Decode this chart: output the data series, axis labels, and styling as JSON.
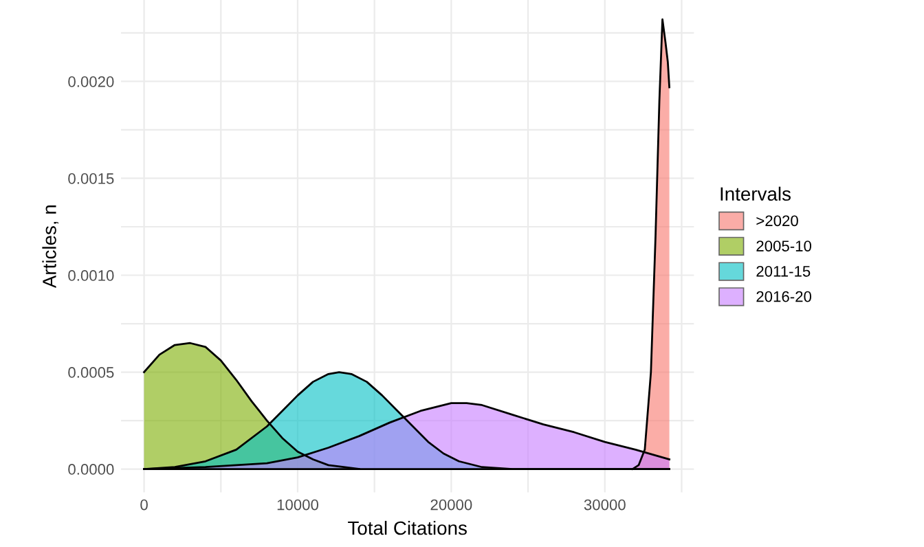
{
  "chart_data": {
    "type": "area",
    "xlabel": "Total Citations",
    "ylabel": "Articles, n",
    "legend_title": "Intervals",
    "legend": "right",
    "grid": true,
    "xlim": [
      -1500,
      35800
    ],
    "xticks": [
      0,
      {
        "value": 5000,
        "label": null
      },
      10000,
      {
        "value": 15000,
        "label": null
      },
      20000,
      {
        "value": 25000,
        "label": null
      },
      30000,
      {
        "value": 35000,
        "label": null
      }
    ],
    "ylim": [
      -0.00012,
      0.00242
    ],
    "yticks": [
      {
        "value": 0,
        "label": "0.0000"
      },
      {
        "value": 0.00025,
        "label": null
      },
      {
        "value": 0.0005,
        "label": "0.0005"
      },
      {
        "value": 0.00075,
        "label": null
      },
      {
        "value": 0.001,
        "label": "0.0010"
      },
      {
        "value": 0.00125,
        "label": null
      },
      {
        "value": 0.0015,
        "label": "0.0015"
      },
      {
        "value": 0.00175,
        "label": null
      },
      {
        "value": 0.002,
        "label": "0.0020"
      },
      {
        "value": 0.00225,
        "label": null
      }
    ],
    "series": [
      {
        "name": ">2020",
        "color": "#f8766d",
        "x": [
          31800,
          32200,
          32600,
          33000,
          33300,
          33550,
          33750,
          33950,
          34100,
          34200
        ],
        "values": [
          0,
          2e-05,
          0.0001,
          0.0005,
          0.0012,
          0.0019,
          0.00232,
          0.0022,
          0.0021,
          0.00197
        ]
      },
      {
        "name": "2005-10",
        "color": "#7cae00",
        "x": [
          0,
          1000,
          2000,
          3000,
          4000,
          5000,
          6000,
          7000,
          7500,
          8000,
          9000,
          10000,
          11000,
          12000,
          13000,
          14000
        ],
        "values": [
          0.0005,
          0.00059,
          0.00064,
          0.00065,
          0.00063,
          0.00056,
          0.00046,
          0.00035,
          0.0003,
          0.00025,
          0.00016,
          9e-05,
          5e-05,
          2e-05,
          1e-05,
          0
        ]
      },
      {
        "name": "2011-15",
        "color": "#00bfc4",
        "x": [
          0,
          2000,
          4000,
          6000,
          8000,
          9000,
          10000,
          11000,
          12000,
          12700,
          13500,
          14500,
          15500,
          16500,
          17500,
          18500,
          19500,
          20500,
          22000,
          24000,
          34200
        ],
        "values": [
          0,
          1e-05,
          4e-05,
          0.0001,
          0.00022,
          0.0003,
          0.00038,
          0.00045,
          0.00049,
          0.0005,
          0.00049,
          0.00045,
          0.00038,
          0.0003,
          0.00022,
          0.00014,
          8e-05,
          4e-05,
          1e-05,
          0,
          0
        ]
      },
      {
        "name": "2016-20",
        "color": "#c77cff",
        "x": [
          0,
          4000,
          8000,
          10000,
          12000,
          14000,
          16000,
          18000,
          20000,
          21000,
          22000,
          24000,
          26000,
          28000,
          30000,
          32000,
          34200
        ],
        "values": [
          0,
          1e-05,
          3e-05,
          6e-05,
          0.00011,
          0.00017,
          0.00024,
          0.0003,
          0.00034,
          0.00034,
          0.00033,
          0.00028,
          0.00023,
          0.00019,
          0.00014,
          0.0001,
          5e-05
        ]
      }
    ]
  }
}
